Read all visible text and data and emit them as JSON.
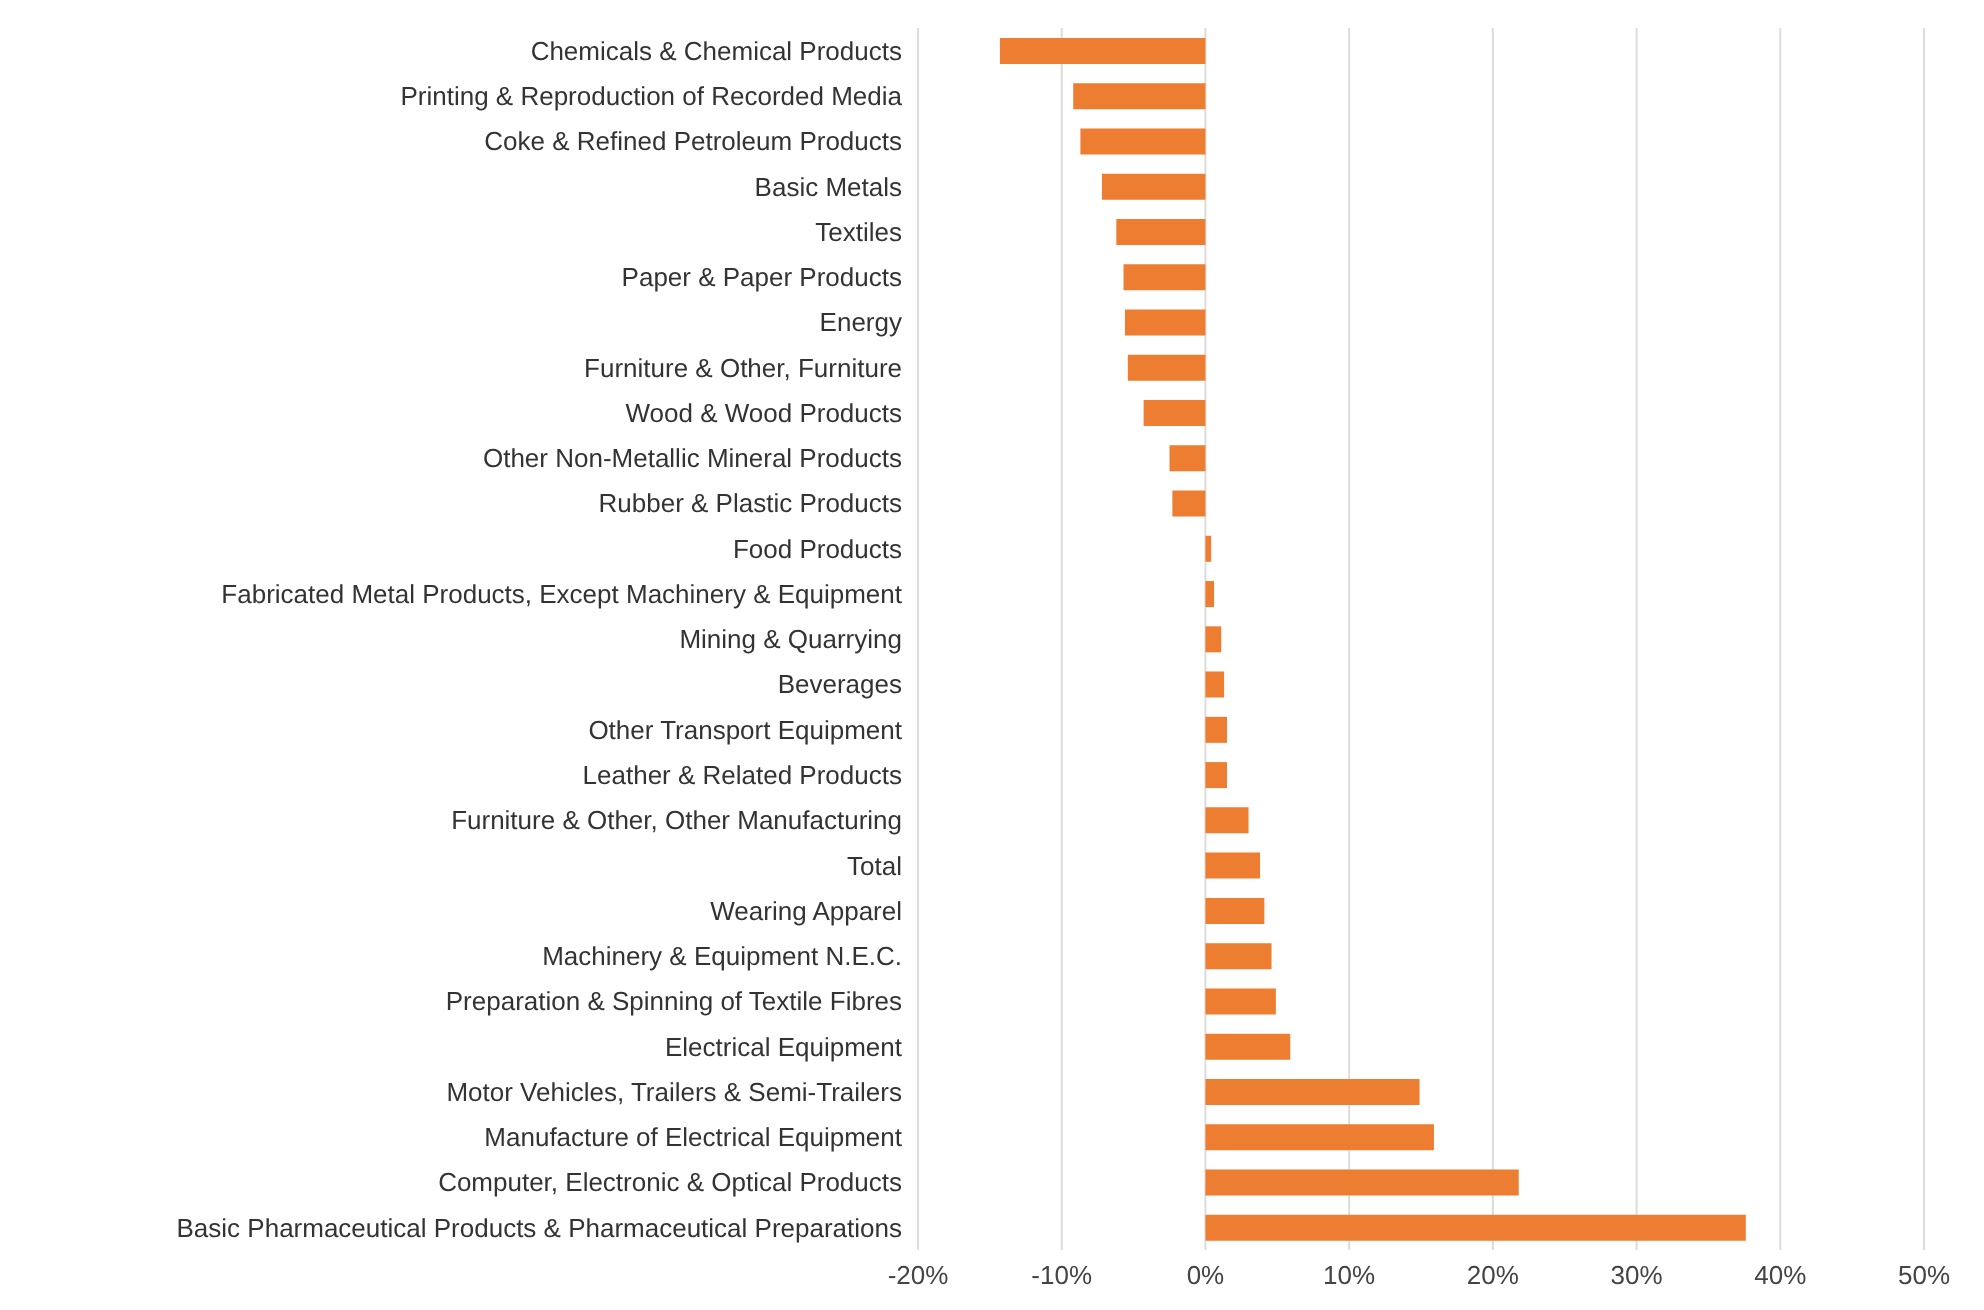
{
  "chart_data": {
    "type": "bar",
    "orientation": "horizontal",
    "categories": [
      "Chemicals & Chemical Products",
      "Printing & Reproduction of Recorded Media",
      "Coke & Refined Petroleum Products",
      "Basic Metals",
      "Textiles",
      "Paper & Paper Products",
      "Energy",
      "Furniture & Other, Furniture",
      "Wood & Wood Products",
      "Other Non-Metallic Mineral Products",
      "Rubber & Plastic Products",
      "Food Products",
      "Fabricated Metal Products, Except Machinery & Equipment",
      "Mining & Quarrying",
      "Beverages",
      "Other Transport Equipment",
      "Leather & Related Products",
      "Furniture & Other, Other Manufacturing",
      "Total",
      "Wearing Apparel",
      "Machinery & Equipment N.E.C.",
      "Preparation & Spinning of Textile Fibres",
      "Electrical Equipment",
      "Motor Vehicles, Trailers & Semi-Trailers",
      "Manufacture of Electrical Equipment",
      "Computer, Electronic & Optical Products",
      "Basic Pharmaceutical Products & Pharmaceutical Preparations"
    ],
    "values": [
      -14.3,
      -9.2,
      -8.7,
      -7.2,
      -6.2,
      -5.7,
      -5.6,
      -5.4,
      -4.3,
      -2.5,
      -2.3,
      0.4,
      0.6,
      1.1,
      1.3,
      1.5,
      1.5,
      3.0,
      3.8,
      4.1,
      4.6,
      4.9,
      5.9,
      14.9,
      15.9,
      21.8,
      37.6
    ],
    "color": "#ed7d31",
    "xlim": [
      -20,
      50
    ],
    "xticks": [
      {
        "value": -20,
        "label": "-20%"
      },
      {
        "value": -10,
        "label": "-10%"
      },
      {
        "value": 0,
        "label": "0%"
      },
      {
        "value": 10,
        "label": "10%"
      },
      {
        "value": 20,
        "label": "20%"
      },
      {
        "value": 30,
        "label": "30%"
      },
      {
        "value": 40,
        "label": "40%"
      },
      {
        "value": 50,
        "label": "50%"
      }
    ],
    "grid": "x"
  }
}
